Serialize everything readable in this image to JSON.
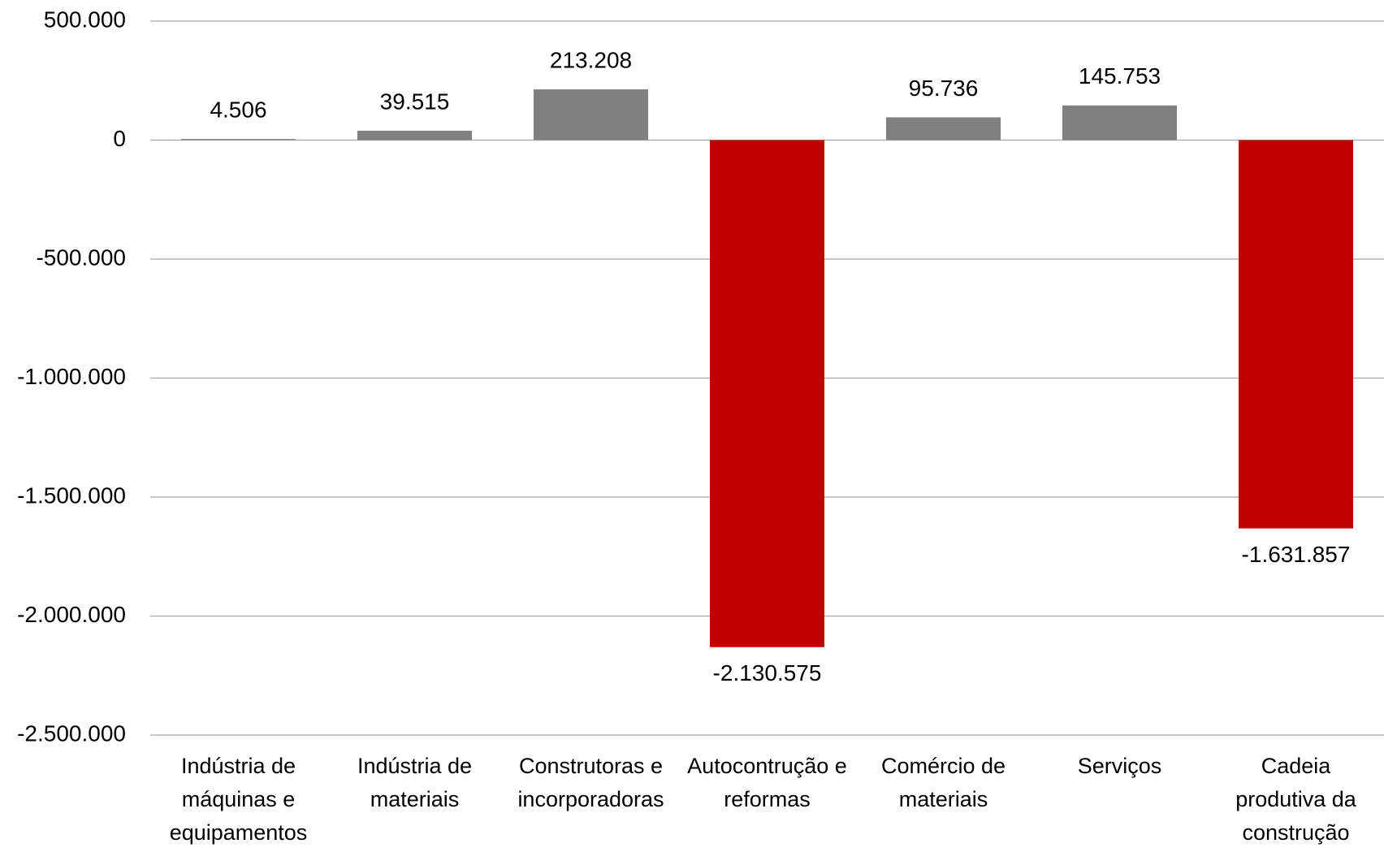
{
  "chart_data": {
    "type": "bar",
    "categories": [
      "Indústria de máquinas e equipamentos",
      "Indústria de materiais",
      "Construtoras e incorporadoras",
      "Autocontrução e reformas",
      "Comércio de materiais",
      "Serviços",
      "Cadeia produtiva da construção"
    ],
    "values": [
      4506,
      39515,
      213208,
      -2130575,
      95736,
      145753,
      -1631857
    ],
    "value_labels": [
      "4.506",
      "39.515",
      "213.208",
      "-2.130.575",
      "95.736",
      "145.753",
      "-1.631.857"
    ],
    "colors": [
      "#808080",
      "#808080",
      "#808080",
      "#c00000",
      "#808080",
      "#808080",
      "#c00000"
    ],
    "ylim": [
      500000,
      -2500000
    ],
    "yticks": [
      {
        "value": 500000,
        "label": "500.000"
      },
      0,
      {
        "value": -500000,
        "label": "-500.000"
      },
      {
        "value": -1000000,
        "label": "-1.000.000"
      },
      {
        "value": -1500000,
        "label": "-1.500.000"
      },
      {
        "value": -2000000,
        "label": "-2.000.000"
      },
      {
        "value": -2500000,
        "label": "-2.500.000"
      }
    ],
    "grid": true
  }
}
